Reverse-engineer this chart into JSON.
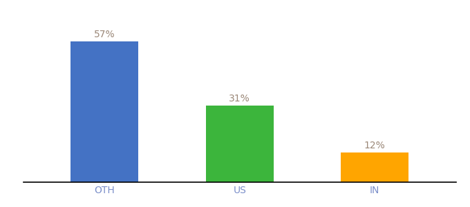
{
  "categories": [
    "OTH",
    "US",
    "IN"
  ],
  "values": [
    57,
    31,
    12
  ],
  "bar_colors": [
    "#4472C4",
    "#3CB53C",
    "#FFA500"
  ],
  "label_color": "#9B8878",
  "label_fontsize": 10,
  "tick_fontsize": 10,
  "tick_color": "#7B8FCA",
  "ylim": [
    0,
    68
  ],
  "background_color": "#ffffff",
  "bar_width": 0.5,
  "figsize": [
    6.8,
    3.0
  ],
  "dpi": 100
}
